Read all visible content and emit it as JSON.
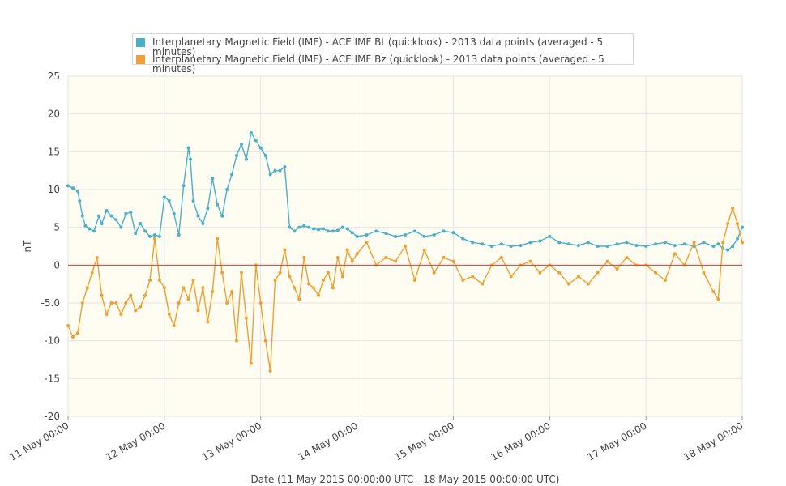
{
  "chart_data": {
    "type": "line",
    "xlabel": "Date (11 May 2015 00:00:00 UTC - 18 May 2015 00:00:00 UTC)",
    "ylabel": "nT",
    "ylim": [
      -20,
      25
    ],
    "xlim": [
      0,
      7
    ],
    "yticks": [
      25,
      20,
      15,
      10,
      5,
      0,
      -5.0,
      -10,
      -15,
      -20
    ],
    "ytick_labels": [
      "25",
      "20",
      "15",
      "10",
      "5",
      "0",
      "-5.0",
      "-10",
      "-15",
      "-20"
    ],
    "xticks": [
      0,
      1,
      2,
      3,
      4,
      5,
      6,
      7
    ],
    "xtick_labels": [
      "11 May 00:00",
      "12 May 00:00",
      "13 May 00:00",
      "14 May 00:00",
      "15 May 00:00",
      "16 May 00:00",
      "17 May 00:00",
      "18 May 00:00"
    ],
    "grid": true,
    "legend_position": "top",
    "reference_line": {
      "y": 0,
      "color": "#e53935"
    },
    "background": "#fffdf2",
    "series": [
      {
        "name": "Interplanetary Magnetic Field (IMF) - ACE IMF Bt (quicklook) - 2013 data points (averaged - 5 minutes)",
        "color": "#48b0c8",
        "x": [
          0.0,
          0.05,
          0.1,
          0.12,
          0.15,
          0.18,
          0.22,
          0.27,
          0.32,
          0.35,
          0.4,
          0.45,
          0.5,
          0.55,
          0.6,
          0.65,
          0.7,
          0.75,
          0.8,
          0.85,
          0.9,
          0.95,
          1.0,
          1.05,
          1.1,
          1.15,
          1.2,
          1.25,
          1.27,
          1.3,
          1.35,
          1.4,
          1.45,
          1.5,
          1.55,
          1.6,
          1.65,
          1.7,
          1.75,
          1.8,
          1.85,
          1.9,
          1.95,
          2.0,
          2.05,
          2.1,
          2.15,
          2.2,
          2.25,
          2.3,
          2.35,
          2.4,
          2.45,
          2.5,
          2.55,
          2.6,
          2.65,
          2.7,
          2.75,
          2.8,
          2.85,
          2.9,
          2.95,
          3.0,
          3.1,
          3.2,
          3.3,
          3.4,
          3.5,
          3.6,
          3.7,
          3.8,
          3.9,
          4.0,
          4.1,
          4.2,
          4.3,
          4.4,
          4.5,
          4.6,
          4.7,
          4.8,
          4.9,
          5.0,
          5.1,
          5.2,
          5.3,
          5.4,
          5.5,
          5.6,
          5.7,
          5.8,
          5.9,
          6.0,
          6.1,
          6.2,
          6.3,
          6.4,
          6.5,
          6.6,
          6.7,
          6.75,
          6.8,
          6.85,
          6.9,
          6.95,
          7.0
        ],
        "values": [
          10.5,
          10.2,
          9.8,
          8.5,
          6.5,
          5.2,
          4.8,
          4.5,
          6.5,
          5.5,
          7.2,
          6.5,
          6.0,
          5.0,
          6.8,
          7.0,
          4.2,
          5.5,
          4.5,
          3.8,
          4.0,
          3.8,
          9.0,
          8.5,
          6.8,
          4.0,
          10.5,
          15.5,
          14.0,
          8.5,
          6.5,
          5.5,
          7.5,
          11.5,
          8.0,
          6.5,
          10.0,
          12.0,
          14.5,
          16.0,
          14.0,
          17.5,
          16.5,
          15.5,
          14.5,
          12.0,
          12.5,
          12.5,
          13.0,
          5.0,
          4.5,
          5.0,
          5.2,
          5.0,
          4.8,
          4.7,
          4.8,
          4.5,
          4.5,
          4.6,
          5.0,
          4.8,
          4.3,
          3.8,
          4.0,
          4.5,
          4.2,
          3.8,
          4.0,
          4.5,
          3.8,
          4.0,
          4.5,
          4.3,
          3.5,
          3.0,
          2.8,
          2.5,
          2.8,
          2.5,
          2.6,
          3.0,
          3.2,
          3.8,
          3.0,
          2.8,
          2.6,
          3.0,
          2.5,
          2.5,
          2.8,
          3.0,
          2.6,
          2.5,
          2.8,
          3.0,
          2.6,
          2.8,
          2.5,
          3.0,
          2.5,
          2.8,
          2.2,
          2.0,
          2.5,
          3.5,
          5.0
        ]
      },
      {
        "name": "Interplanetary Magnetic Field (IMF) - ACE IMF Bz (quicklook) - 2013 data points (averaged - 5 minutes)",
        "color": "#f0a030",
        "x": [
          0.0,
          0.05,
          0.1,
          0.15,
          0.2,
          0.25,
          0.3,
          0.35,
          0.4,
          0.45,
          0.5,
          0.55,
          0.6,
          0.65,
          0.7,
          0.75,
          0.8,
          0.85,
          0.9,
          0.95,
          1.0,
          1.05,
          1.1,
          1.15,
          1.2,
          1.25,
          1.3,
          1.35,
          1.4,
          1.45,
          1.5,
          1.55,
          1.6,
          1.65,
          1.7,
          1.75,
          1.8,
          1.85,
          1.9,
          1.95,
          2.0,
          2.05,
          2.1,
          2.15,
          2.2,
          2.25,
          2.3,
          2.35,
          2.4,
          2.45,
          2.5,
          2.55,
          2.6,
          2.65,
          2.7,
          2.75,
          2.8,
          2.85,
          2.9,
          2.95,
          3.0,
          3.1,
          3.2,
          3.3,
          3.4,
          3.5,
          3.6,
          3.7,
          3.8,
          3.9,
          4.0,
          4.1,
          4.2,
          4.3,
          4.4,
          4.5,
          4.6,
          4.7,
          4.8,
          4.9,
          5.0,
          5.1,
          5.2,
          5.3,
          5.4,
          5.5,
          5.6,
          5.7,
          5.8,
          5.9,
          6.0,
          6.1,
          6.2,
          6.3,
          6.4,
          6.5,
          6.6,
          6.7,
          6.75,
          6.8,
          6.85,
          6.9,
          6.95,
          7.0
        ],
        "values": [
          -8.0,
          -9.5,
          -9.0,
          -5.0,
          -3.0,
          -1.0,
          1.0,
          -4.0,
          -6.5,
          -5.0,
          -5.0,
          -6.5,
          -5.0,
          -4.0,
          -6.0,
          -5.5,
          -4.0,
          -2.0,
          3.5,
          -2.0,
          -3.0,
          -6.5,
          -8.0,
          -5.0,
          -3.0,
          -4.5,
          -2.0,
          -6.0,
          -3.0,
          -7.5,
          -3.5,
          3.5,
          -1.0,
          -5.0,
          -3.5,
          -10.0,
          -1.0,
          -7.0,
          -13.0,
          0.0,
          -5.0,
          -10.0,
          -14.0,
          -2.0,
          -1.0,
          2.0,
          -1.5,
          -3.0,
          -4.5,
          1.0,
          -2.5,
          -3.0,
          -4.0,
          -2.0,
          -1.0,
          -3.0,
          1.0,
          -1.5,
          2.0,
          0.5,
          1.5,
          3.0,
          0.0,
          1.0,
          0.5,
          2.5,
          -2.0,
          2.0,
          -1.0,
          1.0,
          0.5,
          -2.0,
          -1.5,
          -2.5,
          0.0,
          1.0,
          -1.5,
          0.0,
          0.5,
          -1.0,
          0.0,
          -1.0,
          -2.5,
          -1.5,
          -2.5,
          -1.0,
          0.5,
          -0.5,
          1.0,
          0.0,
          0.0,
          -1.0,
          -2.0,
          1.5,
          0.0,
          3.0,
          -1.0,
          -3.5,
          -4.5,
          3.0,
          5.5,
          7.5,
          5.5,
          3.0
        ]
      }
    ]
  }
}
